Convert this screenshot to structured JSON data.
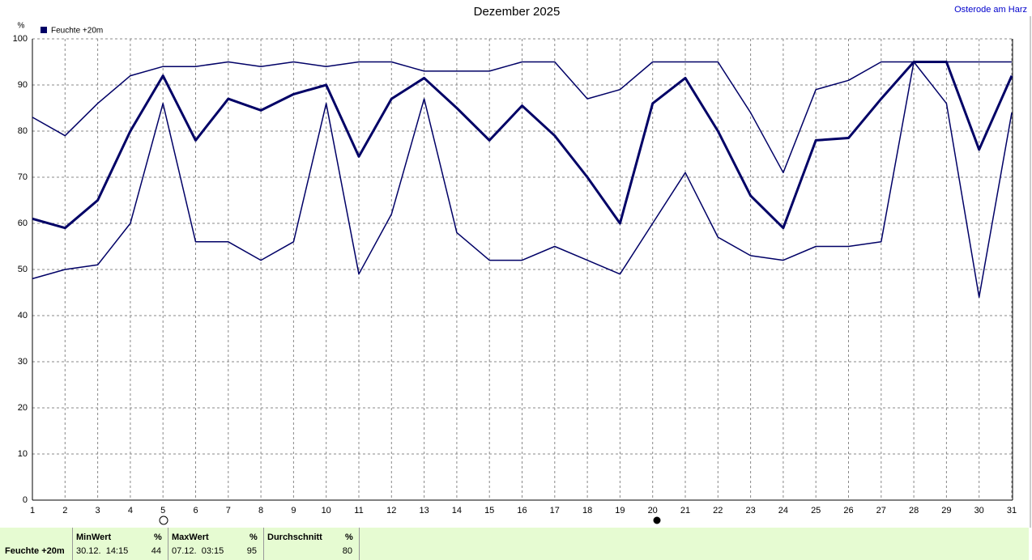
{
  "chart_data": {
    "type": "line",
    "title": "Dezember 2025",
    "corner_label": "Osterode am Harz",
    "y_label": "%",
    "x": [
      1,
      2,
      3,
      4,
      5,
      6,
      7,
      8,
      9,
      10,
      11,
      12,
      13,
      14,
      15,
      16,
      17,
      18,
      19,
      20,
      21,
      22,
      23,
      24,
      25,
      26,
      27,
      28,
      29,
      30,
      31
    ],
    "xlim": [
      1,
      31
    ],
    "xticks": [
      1,
      2,
      3,
      4,
      5,
      6,
      7,
      8,
      9,
      10,
      11,
      12,
      13,
      14,
      15,
      16,
      17,
      18,
      19,
      20,
      21,
      22,
      23,
      24,
      25,
      26,
      27,
      28,
      29,
      30,
      31
    ],
    "ylim": [
      0,
      100
    ],
    "yticks": [
      0,
      10,
      20,
      30,
      40,
      50,
      60,
      70,
      80,
      90,
      100
    ],
    "grid": true,
    "series": [
      {
        "name": "Feuchte +20m",
        "color": "#000066",
        "values": [
          61,
          59,
          65,
          80,
          92,
          78,
          87,
          84.5,
          88,
          90,
          74.5,
          87,
          91.5,
          85,
          78,
          85.5,
          79,
          70,
          60,
          86,
          91.5,
          80,
          66,
          59,
          78,
          78.5,
          87,
          95,
          95,
          76,
          92
        ],
        "max": [
          83,
          79,
          86,
          92,
          94,
          94,
          95,
          94,
          95,
          94,
          95,
          95,
          93,
          93,
          93,
          95,
          95,
          87,
          89,
          95,
          95,
          95,
          84,
          71,
          89,
          91,
          95,
          95,
          95,
          95,
          95
        ],
        "min": [
          48,
          50,
          51,
          60,
          86,
          56,
          56,
          52,
          56,
          86,
          49,
          62,
          87,
          58,
          52,
          52,
          55,
          52,
          49,
          60,
          71,
          57,
          53,
          52,
          55,
          55,
          56,
          95,
          86,
          44,
          84
        ]
      }
    ]
  },
  "summary": {
    "label": "Feuchte +20m",
    "columns": [
      {
        "header": "MinWert",
        "unit": "%",
        "time": "30.12.  14:15",
        "value": 44
      },
      {
        "header": "MaxWert",
        "unit": "%",
        "time": "07.12.  03:15",
        "value": 95
      },
      {
        "header": "Durchschnitt",
        "unit": "%",
        "time": "",
        "value": 80
      }
    ]
  }
}
